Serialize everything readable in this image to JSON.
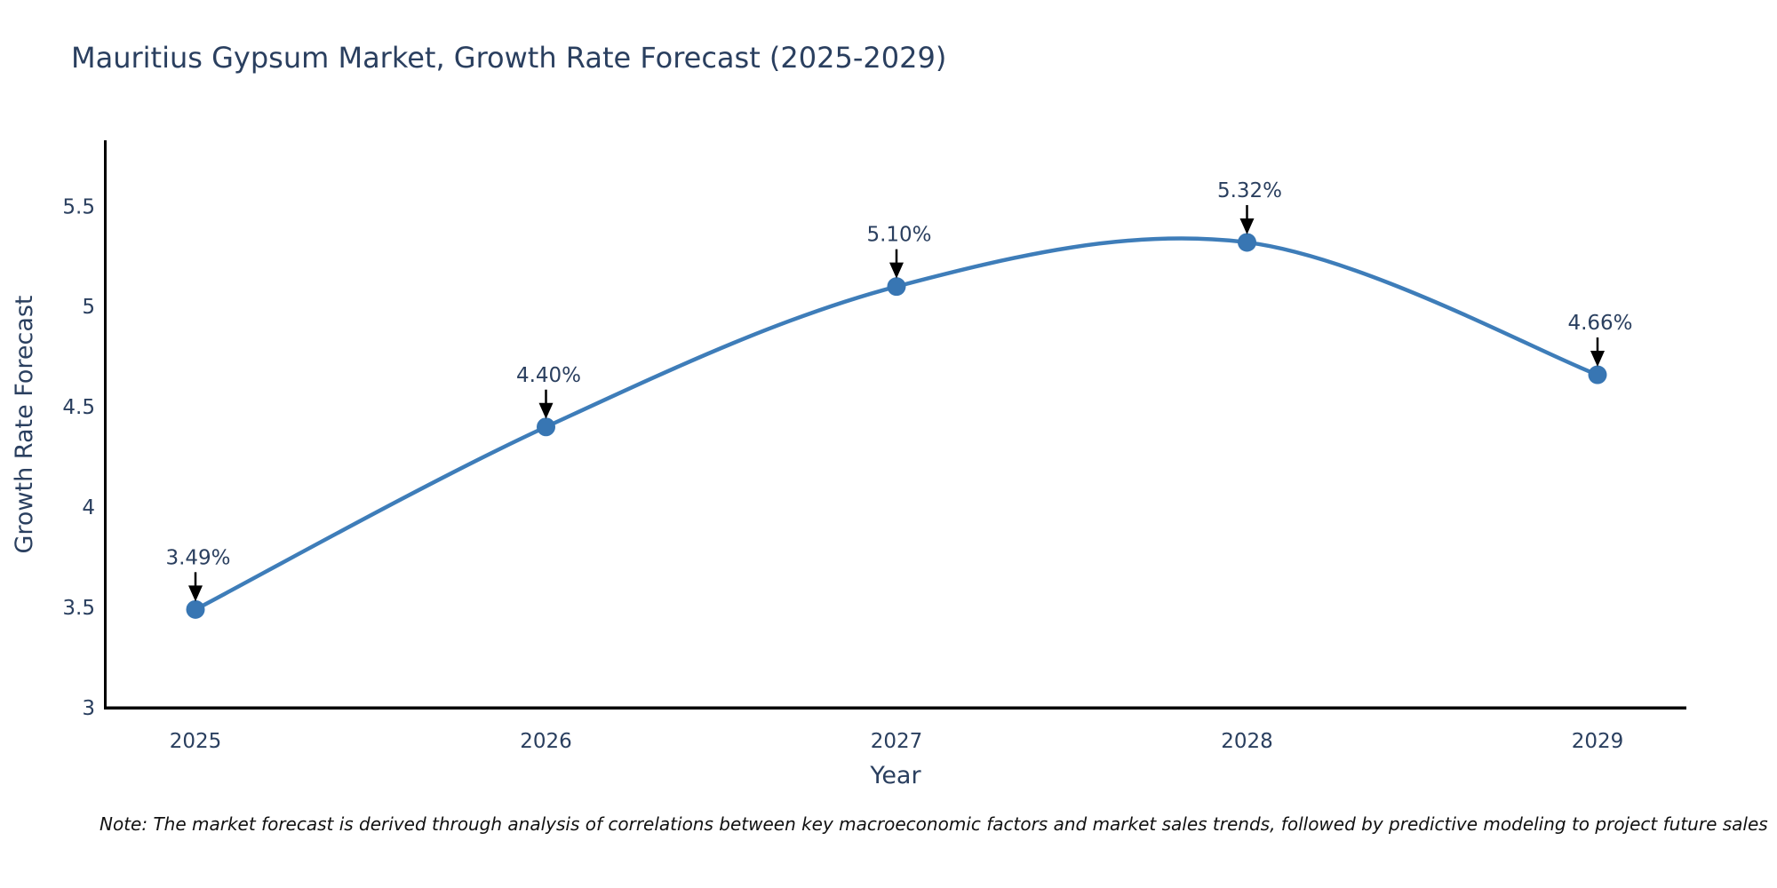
{
  "note": "Note: The market forecast is derived through analysis of correlations between key macroeconomic factors and market sales trends, followed by predictive modeling to project future sales",
  "colors": {
    "text": "#2a3f5f",
    "axis_line": "#000000",
    "line": "#3e7db9",
    "marker": "#3876b3",
    "arrow": "#000000",
    "background": "#ffffff"
  },
  "chart_data": {
    "type": "line",
    "title": "Mauritius Gypsum Market, Growth Rate Forecast (2025-2029)",
    "xlabel": "Year",
    "ylabel": "Growth Rate Forecast",
    "categories": [
      "2025",
      "2026",
      "2027",
      "2028",
      "2029"
    ],
    "x": [
      2025,
      2026,
      2027,
      2028,
      2029
    ],
    "values": [
      3.49,
      4.4,
      5.1,
      5.32,
      4.66
    ],
    "point_labels": [
      "3.49%",
      "4.40%",
      "5.10%",
      "5.32%",
      "4.66%"
    ],
    "ylim": [
      3,
      5.82
    ],
    "yticks": [
      3,
      3.5,
      4,
      4.5,
      5,
      5.5
    ],
    "ytick_labels": [
      "3",
      "3.5",
      "4",
      "4.5",
      "5",
      "5.5"
    ],
    "grid": false,
    "legend": "none",
    "smooth": true,
    "annotations": "value labels with black arrows pointing to each marker"
  }
}
